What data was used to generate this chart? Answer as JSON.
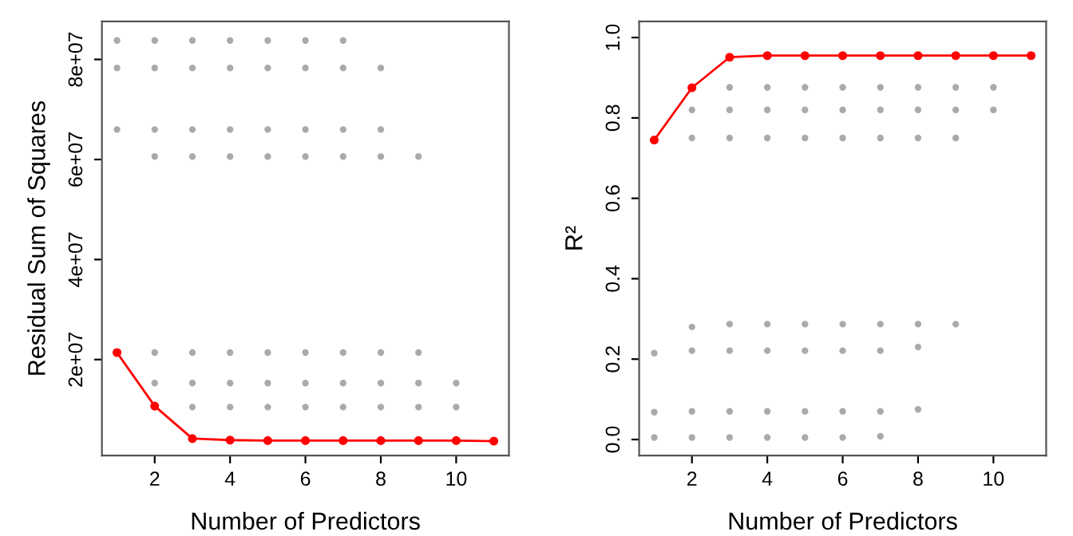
{
  "chart_data": [
    {
      "type": "scatter",
      "xlabel": "Number of Predictors",
      "ylabel": "Residual Sum of Squares",
      "xlim": [
        0.6,
        11.4
      ],
      "ylim": [
        800000,
        87600000
      ],
      "xticks": [
        2,
        4,
        6,
        8,
        10
      ],
      "yticks": [
        {
          "value": 20000000,
          "label": "2e+07"
        },
        {
          "value": 40000000,
          "label": "4e+07"
        },
        {
          "value": 60000000,
          "label": "6e+07"
        },
        {
          "value": 80000000,
          "label": "8e+07"
        }
      ],
      "grid": false,
      "legend": false,
      "marker": "circle",
      "series": [
        {
          "color": "#aaaaaa",
          "x": [
            1,
            2,
            3,
            4,
            5,
            6,
            7,
            1,
            2,
            3,
            4,
            5,
            6,
            7,
            8,
            1,
            2,
            3,
            4,
            5,
            6,
            7,
            8,
            2,
            3,
            4,
            5,
            6,
            7,
            8,
            9,
            2,
            3,
            4,
            5,
            6,
            7,
            8,
            9,
            2,
            3,
            4,
            5,
            6,
            7,
            8,
            9,
            10,
            3,
            4,
            5,
            6,
            7,
            8,
            9,
            10
          ],
          "values": [
            83800000,
            83800000,
            83800000,
            83800000,
            83800000,
            83800000,
            83800000,
            78300000,
            78300000,
            78300000,
            78300000,
            78300000,
            78300000,
            78300000,
            78300000,
            66000000,
            66000000,
            66000000,
            66000000,
            66000000,
            66000000,
            66000000,
            66000000,
            60600000,
            60600000,
            60600000,
            60600000,
            60600000,
            60600000,
            60600000,
            60600000,
            21400000,
            21400000,
            21400000,
            21400000,
            21400000,
            21400000,
            21400000,
            21400000,
            15300000,
            15300000,
            15300000,
            15300000,
            15300000,
            15300000,
            15300000,
            15300000,
            15300000,
            10500000,
            10500000,
            10500000,
            10500000,
            10500000,
            10500000,
            10500000,
            10500000
          ]
        },
        {
          "type": "line",
          "color": "#ff0000",
          "x": [
            1,
            2,
            3,
            4,
            5,
            6,
            7,
            8,
            9,
            10,
            11
          ],
          "values": [
            21400000,
            10700000,
            4200000,
            3900000,
            3800000,
            3800000,
            3800000,
            3800000,
            3800000,
            3800000,
            3700000
          ]
        }
      ]
    },
    {
      "type": "scatter",
      "xlabel": "Number of Predictors",
      "ylabel": "R²",
      "xlim": [
        0.6,
        11.4
      ],
      "ylim": [
        -0.04,
        1.04
      ],
      "xticks": [
        2,
        4,
        6,
        8,
        10
      ],
      "yticks": [
        {
          "value": 0,
          "label": "0.0"
        },
        0.2,
        0.4,
        0.6,
        0.8,
        {
          "value": 1,
          "label": "1.0"
        }
      ],
      "grid": false,
      "legend": false,
      "marker": "circle",
      "series": [
        {
          "color": "#aaaaaa",
          "x": [
            3,
            4,
            5,
            6,
            7,
            8,
            9,
            10,
            2,
            3,
            4,
            5,
            6,
            7,
            8,
            9,
            10,
            2,
            3,
            4,
            5,
            6,
            7,
            8,
            9,
            2,
            3,
            4,
            5,
            6,
            7,
            8,
            9,
            1,
            2,
            3,
            4,
            5,
            6,
            7,
            8,
            1,
            2,
            3,
            4,
            5,
            6,
            7,
            8,
            1,
            2,
            3,
            4,
            5,
            6,
            7
          ],
          "values": [
            0.876,
            0.876,
            0.876,
            0.876,
            0.876,
            0.876,
            0.876,
            0.876,
            0.82,
            0.82,
            0.82,
            0.82,
            0.82,
            0.82,
            0.82,
            0.82,
            0.82,
            0.75,
            0.75,
            0.75,
            0.75,
            0.75,
            0.75,
            0.75,
            0.75,
            0.28,
            0.287,
            0.287,
            0.287,
            0.287,
            0.287,
            0.287,
            0.287,
            0.215,
            0.221,
            0.221,
            0.221,
            0.221,
            0.221,
            0.221,
            0.23,
            0.068,
            0.07,
            0.07,
            0.07,
            0.07,
            0.07,
            0.07,
            0.075,
            0.005,
            0.005,
            0.005,
            0.005,
            0.005,
            0.005,
            0.008
          ]
        },
        {
          "type": "line",
          "color": "#ff0000",
          "x": [
            1,
            2,
            3,
            4,
            5,
            6,
            7,
            8,
            9,
            10,
            11
          ],
          "values": [
            0.745,
            0.875,
            0.951,
            0.955,
            0.955,
            0.955,
            0.955,
            0.955,
            0.955,
            0.955,
            0.955
          ]
        }
      ]
    }
  ]
}
